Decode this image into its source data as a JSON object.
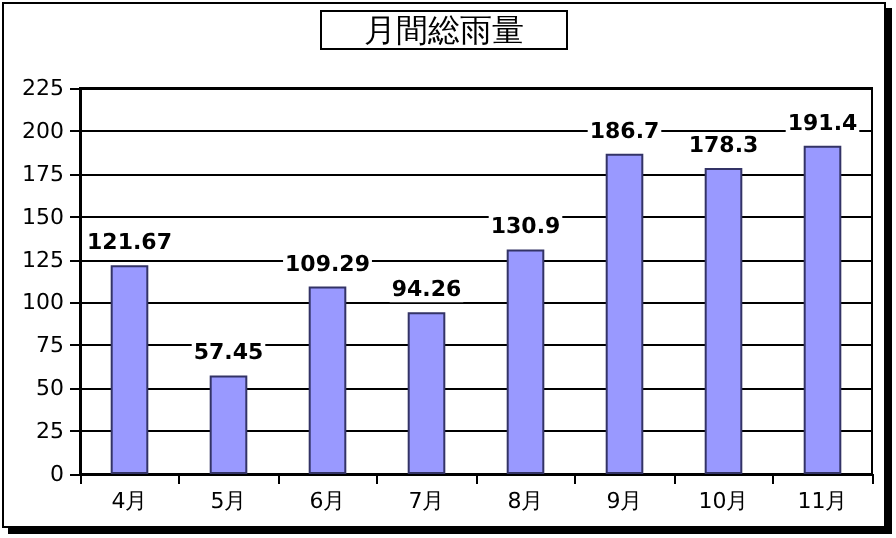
{
  "chart_data": {
    "type": "bar",
    "title": "月間総雨量",
    "categories": [
      "4月",
      "5月",
      "6月",
      "7月",
      "8月",
      "9月",
      "10月",
      "11月"
    ],
    "values": [
      121.67,
      57.45,
      109.29,
      94.26,
      130.9,
      186.7,
      178.3,
      191.4
    ],
    "color": "#9999ff",
    "ylim": [
      0,
      225
    ],
    "yticks": [
      0,
      25,
      50,
      75,
      100,
      125,
      150,
      175,
      200,
      225
    ],
    "grid": "y",
    "data_labels": true
  }
}
